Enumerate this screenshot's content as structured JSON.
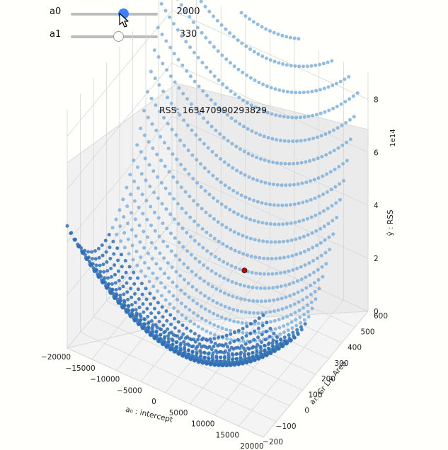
{
  "sliders": [
    {
      "label": "a0",
      "value": "2000",
      "position": 0.61,
      "active": true
    },
    {
      "label": "a1",
      "value": "330",
      "position": 0.55,
      "active": false
    }
  ],
  "colors": {
    "surface_light": "#7fb0da",
    "surface_dark": "#2f6fb5",
    "marker": "#cc0000",
    "slider_active": "#3b82f6"
  },
  "chart_data": {
    "type": "scatter3d",
    "title": "RSS: 16347099029382​9",
    "x_label": "a₀ : intercept",
    "y_label": "a₁: Gr Liv Area",
    "z_label": "ŷ : RSS",
    "z_offset_label": "1e14",
    "x_ticks": [
      "−20000",
      "−15000",
      "−10000",
      "−5000",
      "0",
      "5000",
      "10000",
      "15000",
      "20000"
    ],
    "y_ticks": [
      "−200",
      "−100",
      "0",
      "100",
      "200",
      "300",
      "400",
      "500",
      "600"
    ],
    "z_ticks": [
      "0",
      "2",
      "4",
      "6",
      "8"
    ],
    "x_range": [
      -20000,
      20000
    ],
    "y_range": [
      -200,
      600
    ],
    "z_range": [
      0,
      9
    ],
    "grid": true,
    "current_point": {
      "a0": 2000,
      "a1": 330,
      "rss": 163470990293829
    }
  }
}
